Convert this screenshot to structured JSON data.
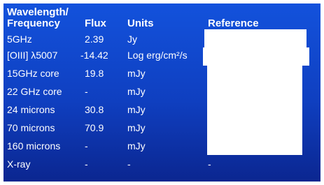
{
  "header": {
    "wavelength": [
      "Wavelength/",
      "Frequency"
    ],
    "flux": "Flux",
    "units": "Units",
    "reference": "Reference"
  },
  "table": {
    "rows": [
      [
        "5GHz",
        "2.39",
        "Jy"
      ],
      [
        "[OIII] λ5007",
        "-14.42",
        "Log erg/cm²/s"
      ],
      [
        "15GHz core",
        "19.8",
        "mJy"
      ],
      [
        "22 GHz core",
        "-",
        "mJy"
      ],
      [
        "24 microns",
        "30.8",
        "mJy"
      ],
      [
        "70 microns",
        "70.9",
        "mJy"
      ],
      [
        "160 microns",
        "-",
        "mJy"
      ],
      [
        "X-ray",
        "-",
        "-",
        "-"
      ]
    ]
  }
}
